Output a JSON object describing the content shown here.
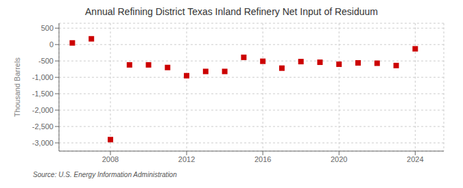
{
  "chart_data": {
    "type": "scatter",
    "title": "Annual Refining District Texas Inland Refinery Net Input of Residuum",
    "ylabel": "Thousand Barrels",
    "annotations": [
      "Source: U.S. Energy Information Administration"
    ],
    "x": [
      2006,
      2007,
      2008,
      2009,
      2010,
      2011,
      2012,
      2013,
      2014,
      2015,
      2016,
      2017,
      2018,
      2019,
      2020,
      2021,
      2022,
      2023,
      2024
    ],
    "values": [
      50,
      175,
      -2900,
      -620,
      -620,
      -700,
      -950,
      -820,
      -820,
      -390,
      -510,
      -720,
      -520,
      -540,
      -600,
      -560,
      -570,
      -640,
      -130
    ],
    "color": "#cc0000",
    "marker": "square",
    "xlim": [
      2005.3,
      2025.5
    ],
    "xticks": [
      2008,
      2012,
      2016,
      2020,
      2024
    ],
    "ylim": [
      -3250,
      650
    ],
    "yticks": [
      500,
      0,
      -500,
      {
        "value": -1000,
        "label": "-1,000"
      },
      {
        "value": -1500,
        "label": "-1,500"
      },
      {
        "value": -2000,
        "label": "-2,000"
      },
      {
        "value": -2500,
        "label": "-2,500"
      },
      {
        "value": -3000,
        "label": "-3,000"
      }
    ],
    "grid": true
  }
}
